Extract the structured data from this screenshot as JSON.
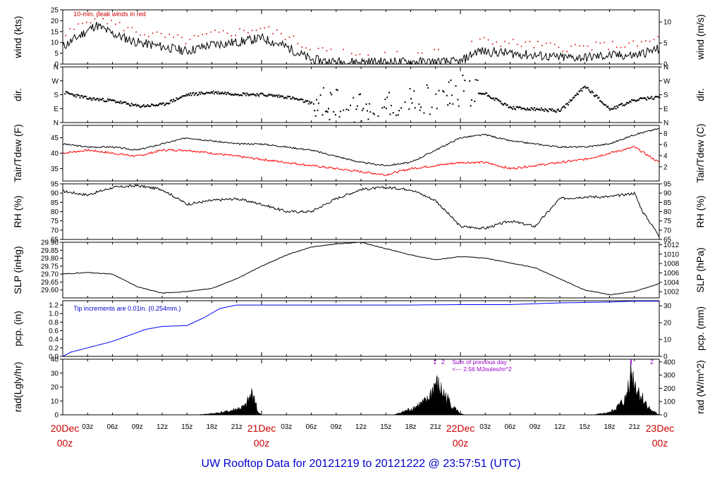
{
  "footer": {
    "title": "UW Rooftop Data for 20121219  to  20121222 @ 23:57:51  (UTC)",
    "color": "#0000cc"
  },
  "time_axis": {
    "hour_ticks": [
      "03z",
      "06z",
      "09z",
      "12z",
      "15z",
      "18z",
      "21z",
      "03z",
      "06z",
      "09z",
      "12z",
      "15z",
      "18z",
      "21z",
      "03z",
      "06z",
      "09z",
      "12z",
      "15z",
      "18z",
      "21z"
    ],
    "day_labels": [
      {
        "day": "20Dec",
        "hour": "00z"
      },
      {
        "day": "21Dec",
        "hour": "00z"
      },
      {
        "day": "22Dec",
        "hour": "00z"
      },
      {
        "day": "23Dec",
        "hour": "00z"
      }
    ],
    "day_label_color": "#cc0000"
  },
  "chart_data": [
    {
      "type": "line",
      "panel": "wind",
      "ylabel": "wind (kts)",
      "ylabel_right": "wind (m/s)",
      "ylim": [
        0,
        25
      ],
      "yticks": [
        0,
        5,
        10,
        15,
        20,
        25
      ],
      "yticks_right": [
        0,
        5,
        10
      ],
      "annotation": "10-min. peak winds in red",
      "series_colors": [
        "#000000",
        "#cc0000"
      ],
      "x_hours": [
        0,
        2,
        4,
        6,
        9,
        12,
        15,
        18,
        21,
        24,
        27,
        30,
        33,
        36,
        39,
        42,
        45,
        48,
        50,
        54,
        57,
        60,
        63,
        66,
        69,
        72
      ],
      "y": [
        8,
        13,
        18,
        14,
        10,
        8,
        6,
        9,
        10,
        12,
        8,
        2,
        1,
        1,
        1,
        1,
        1,
        1,
        6,
        5,
        4,
        3,
        3,
        4,
        4,
        7
      ]
    },
    {
      "type": "scatter",
      "panel": "dir",
      "ylabel": "dir.",
      "ylabel_right": "dir.",
      "yticks": [
        "N",
        "E",
        "S",
        "W",
        "N"
      ],
      "x_hours": [
        0,
        3,
        6,
        9,
        12,
        15,
        18,
        21,
        24,
        27,
        30,
        33,
        36,
        39,
        42,
        45,
        48,
        51,
        54,
        57,
        60,
        63,
        66,
        69,
        72
      ],
      "y_deg": [
        200,
        160,
        145,
        110,
        120,
        185,
        200,
        190,
        185,
        170,
        130,
        120,
        100,
        110,
        120,
        180,
        210,
        190,
        100,
        90,
        80,
        240,
        90,
        150,
        170
      ]
    },
    {
      "type": "line",
      "panel": "temperature",
      "ylabel": "Tair/Tdew (F)",
      "ylabel_right": "Tair/Tdew (C)",
      "ylim": [
        31,
        49
      ],
      "yticks": [
        35,
        40,
        45
      ],
      "yticks_right": [
        2,
        4,
        6,
        8
      ],
      "series_colors": [
        "#000000",
        "#ff0000"
      ],
      "x_hours": [
        0,
        3,
        6,
        9,
        12,
        15,
        18,
        21,
        24,
        27,
        30,
        33,
        36,
        39,
        42,
        45,
        48,
        51,
        54,
        57,
        60,
        63,
        66,
        69,
        72
      ],
      "air": [
        43,
        42,
        42,
        41,
        43,
        45,
        44,
        43,
        43,
        42,
        41,
        39,
        37,
        36,
        37,
        41,
        45,
        46,
        44,
        43,
        42,
        42,
        43,
        46,
        48
      ],
      "dew": [
        40,
        41,
        40,
        39,
        41,
        41,
        40,
        39,
        38,
        37,
        36,
        35,
        34,
        33,
        35,
        36,
        37,
        37,
        35,
        36,
        37,
        38,
        40,
        42,
        37
      ]
    },
    {
      "type": "line",
      "panel": "rh",
      "ylabel": "RH (%)",
      "ylabel_right": "RH (%)",
      "ylim": [
        65,
        95
      ],
      "yticks": [
        65,
        70,
        75,
        80,
        85,
        90,
        95
      ],
      "yticks_right": [
        65,
        70,
        75,
        80,
        85,
        90,
        95
      ],
      "x_hours": [
        0,
        3,
        6,
        9,
        12,
        15,
        18,
        21,
        24,
        27,
        30,
        33,
        36,
        39,
        42,
        45,
        48,
        51,
        54,
        57,
        60,
        63,
        66,
        69,
        70,
        72
      ],
      "y": [
        91,
        89,
        93,
        94,
        92,
        84,
        86,
        87,
        84,
        80,
        80,
        87,
        92,
        93,
        92,
        86,
        72,
        71,
        75,
        72,
        87,
        88,
        88,
        90,
        80,
        67
      ]
    },
    {
      "type": "line",
      "panel": "slp",
      "ylabel": "SLP (inHg)",
      "ylabel_right": "SLP (hPa)",
      "ylim": [
        29.55,
        29.9
      ],
      "yticks": [
        29.6,
        29.65,
        29.7,
        29.75,
        29.8,
        29.85,
        29.9
      ],
      "yticks_right": [
        1002,
        1004,
        1006,
        1008,
        1010,
        1012
      ],
      "x_hours": [
        0,
        3,
        6,
        9,
        12,
        15,
        18,
        21,
        24,
        27,
        30,
        33,
        36,
        39,
        42,
        45,
        48,
        51,
        54,
        57,
        60,
        63,
        66,
        69,
        72
      ],
      "y": [
        29.7,
        29.71,
        29.7,
        29.62,
        29.58,
        29.59,
        29.61,
        29.67,
        29.75,
        29.82,
        29.87,
        29.89,
        29.9,
        29.86,
        29.82,
        29.79,
        29.81,
        29.8,
        29.77,
        29.74,
        29.67,
        29.6,
        29.57,
        29.59,
        29.64
      ]
    },
    {
      "type": "line",
      "panel": "precip",
      "ylabel": "pcp. (in)",
      "ylabel_right": "pcp. (mm)",
      "ylim": [
        0,
        1.3
      ],
      "yticks": [
        0.0,
        0.2,
        0.4,
        0.6,
        0.8,
        1.0,
        1.2
      ],
      "yticks_right": [
        0,
        10,
        20,
        30
      ],
      "annotation": "Tip increments are 0.01in. (0.254mm.)",
      "series_colors": [
        "#0000ff"
      ],
      "x_hours": [
        0,
        1,
        3,
        6,
        9,
        10,
        12,
        15,
        17,
        19,
        21,
        24,
        30,
        36,
        42,
        48,
        54,
        60,
        63,
        66,
        69,
        72
      ],
      "y": [
        0,
        0.1,
        0.2,
        0.35,
        0.56,
        0.63,
        0.7,
        0.72,
        0.9,
        1.12,
        1.2,
        1.2,
        1.2,
        1.2,
        1.2,
        1.21,
        1.21,
        1.25,
        1.26,
        1.27,
        1.29,
        1.29
      ]
    },
    {
      "type": "area",
      "panel": "radiation",
      "ylabel": "rad(Lgly/hr)",
      "ylabel_right": "rad (W/m^2)",
      "ylim": [
        0,
        40
      ],
      "yticks": [
        0,
        10,
        20,
        30,
        40
      ],
      "yticks_right": [
        0,
        100,
        200,
        300,
        400
      ],
      "annotation_lines": [
        "Sum of previous day",
        "<--- 2.56 MJoules/m^2"
      ],
      "annotation_color": "#9900cc",
      "day_markers": [
        "1",
        "2",
        "2"
      ],
      "x_hours": [
        16,
        18,
        20,
        21,
        22,
        23,
        23.5,
        24,
        40,
        42,
        44,
        45,
        46,
        47,
        48,
        48.5,
        64,
        66,
        67,
        68,
        68.5,
        69,
        70,
        71,
        72
      ],
      "y": [
        0,
        1,
        3,
        5,
        7,
        20,
        3,
        0,
        0,
        5,
        12,
        27,
        18,
        8,
        1,
        0,
        0,
        2,
        7,
        14,
        40,
        28,
        14,
        4,
        0
      ]
    }
  ]
}
